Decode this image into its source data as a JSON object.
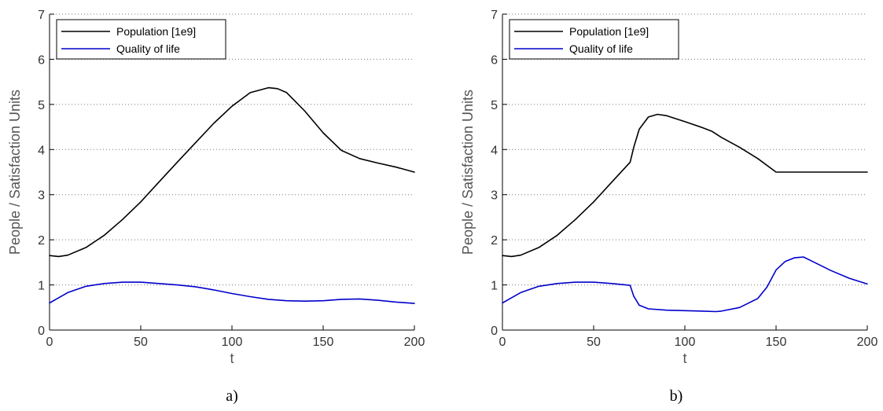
{
  "chart_data": [
    {
      "type": "line",
      "caption": "a)",
      "xlabel": "t",
      "ylabel": "People / Satisfaction Units",
      "xlim": [
        0,
        200
      ],
      "ylim": [
        0,
        7
      ],
      "xticks": [
        0,
        50,
        100,
        150,
        200
      ],
      "yticks": [
        0,
        1,
        2,
        3,
        4,
        5,
        6,
        7
      ],
      "grid": "dotted horizontal",
      "legend": "top-left",
      "series": [
        {
          "name": "Population [1e9]",
          "color": "#000000",
          "x": [
            0,
            5,
            10,
            20,
            30,
            40,
            50,
            60,
            70,
            80,
            90,
            100,
            110,
            120,
            125,
            130,
            140,
            150,
            160,
            170,
            180,
            190,
            200
          ],
          "y": [
            1.65,
            1.63,
            1.66,
            1.83,
            2.1,
            2.45,
            2.84,
            3.28,
            3.72,
            4.15,
            4.58,
            4.96,
            5.26,
            5.37,
            5.35,
            5.26,
            4.85,
            4.37,
            3.98,
            3.8,
            3.7,
            3.61,
            3.5
          ]
        },
        {
          "name": "Quality of life",
          "color": "#0000cc",
          "x": [
            0,
            10,
            20,
            30,
            40,
            50,
            60,
            70,
            80,
            90,
            100,
            110,
            120,
            130,
            140,
            150,
            160,
            170,
            180,
            190,
            200
          ],
          "y": [
            0.6,
            0.83,
            0.97,
            1.03,
            1.06,
            1.06,
            1.03,
            1.0,
            0.96,
            0.89,
            0.81,
            0.74,
            0.68,
            0.65,
            0.64,
            0.65,
            0.68,
            0.69,
            0.66,
            0.62,
            0.59
          ]
        }
      ]
    },
    {
      "type": "line",
      "caption": "b)",
      "xlabel": "t",
      "ylabel": "People / Satisfaction Units",
      "xlim": [
        0,
        200
      ],
      "ylim": [
        0,
        7
      ],
      "xticks": [
        0,
        50,
        100,
        150,
        200
      ],
      "yticks": [
        0,
        1,
        2,
        3,
        4,
        5,
        6,
        7
      ],
      "grid": "dotted horizontal",
      "legend": "top-left",
      "series": [
        {
          "name": "Population [1e9]",
          "color": "#000000",
          "x": [
            0,
            5,
            10,
            20,
            30,
            40,
            50,
            60,
            70,
            72,
            75,
            80,
            85,
            90,
            100,
            110,
            115,
            120,
            130,
            140,
            150,
            152,
            160,
            170,
            180,
            190,
            200
          ],
          "y": [
            1.65,
            1.63,
            1.66,
            1.83,
            2.1,
            2.45,
            2.84,
            3.28,
            3.72,
            4.05,
            4.45,
            4.72,
            4.78,
            4.75,
            4.62,
            4.48,
            4.4,
            4.27,
            4.05,
            3.8,
            3.5,
            3.5,
            3.5,
            3.5,
            3.5,
            3.5,
            3.5
          ]
        },
        {
          "name": "Quality of life",
          "color": "#0000cc",
          "x": [
            0,
            10,
            20,
            30,
            40,
            50,
            60,
            70,
            72,
            75,
            80,
            90,
            100,
            110,
            117,
            120,
            130,
            140,
            145,
            150,
            155,
            160,
            165,
            170,
            180,
            190,
            200
          ],
          "y": [
            0.6,
            0.83,
            0.97,
            1.03,
            1.06,
            1.06,
            1.03,
            0.99,
            0.75,
            0.55,
            0.47,
            0.44,
            0.43,
            0.42,
            0.41,
            0.42,
            0.5,
            0.7,
            0.95,
            1.33,
            1.52,
            1.6,
            1.62,
            1.52,
            1.32,
            1.15,
            1.02
          ]
        }
      ]
    }
  ]
}
